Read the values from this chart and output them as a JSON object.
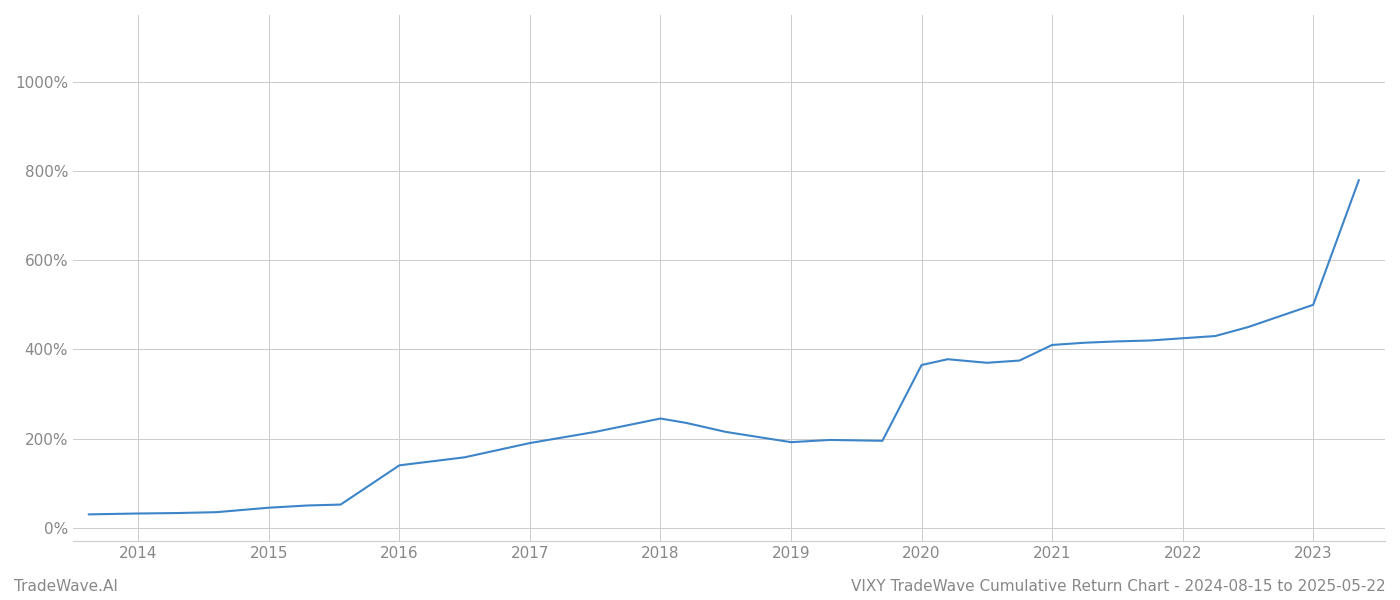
{
  "title": "VIXY TradeWave Cumulative Return Chart - 2024-08-15 to 2025-05-22",
  "watermark": "TradeWave.AI",
  "line_color": "#3d85c8",
  "background_color": "#ffffff",
  "grid_color": "#cccccc",
  "x_years": [
    2014,
    2015,
    2016,
    2017,
    2018,
    2019,
    2020,
    2021,
    2022,
    2023
  ],
  "data_x": [
    2013.62,
    2014.0,
    2014.3,
    2014.6,
    2015.0,
    2015.3,
    2015.55,
    2016.0,
    2016.5,
    2017.0,
    2017.5,
    2018.0,
    2018.2,
    2018.5,
    2019.0,
    2019.3,
    2019.7,
    2020.0,
    2020.2,
    2020.5,
    2020.75,
    2021.0,
    2021.25,
    2021.5,
    2021.75,
    2022.0,
    2022.25,
    2022.5,
    2022.75,
    2023.0,
    2023.1,
    2023.2,
    2023.35
  ],
  "data_y": [
    30,
    32,
    33,
    35,
    45,
    50,
    52,
    140,
    158,
    190,
    215,
    245,
    235,
    215,
    192,
    197,
    195,
    365,
    378,
    370,
    375,
    410,
    415,
    418,
    420,
    425,
    430,
    450,
    475,
    500,
    580,
    660,
    780
  ],
  "ylim": [
    -30,
    1150
  ],
  "xlim": [
    2013.5,
    2023.55
  ],
  "yticks": [
    0,
    200,
    400,
    600,
    800,
    1000
  ],
  "title_fontsize": 11,
  "watermark_fontsize": 11,
  "tick_fontsize": 11,
  "tick_color": "#888888",
  "spine_color": "#cccccc"
}
